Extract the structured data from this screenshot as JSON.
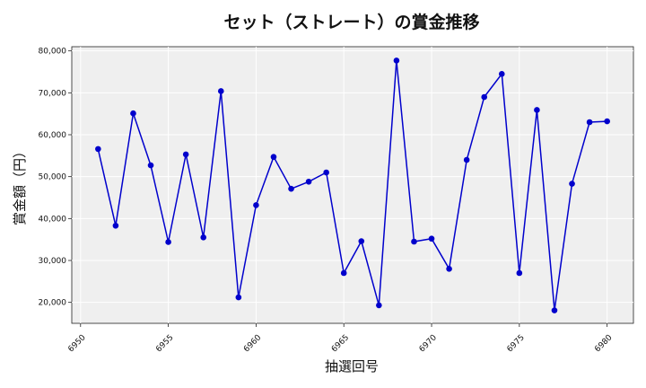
{
  "chart_data": {
    "type": "line",
    "title": "セット（ストレート）の賞金推移",
    "xlabel": "抽選回号",
    "ylabel": "賞金額（円）",
    "xlim": [
      6949.5,
      6981.5
    ],
    "ylim": [
      15000,
      81000
    ],
    "x_ticks": [
      6950,
      6955,
      6960,
      6965,
      6970,
      6975,
      6980
    ],
    "y_ticks": [
      20000,
      30000,
      40000,
      50000,
      60000,
      70000,
      80000
    ],
    "y_tick_labels": [
      "20,000",
      "30,000",
      "40,000",
      "50,000",
      "60,000",
      "70,000",
      "80,000"
    ],
    "grid": true,
    "color": "#0000cc",
    "x": [
      6951,
      6952,
      6953,
      6954,
      6955,
      6956,
      6957,
      6958,
      6959,
      6960,
      6961,
      6962,
      6963,
      6964,
      6965,
      6966,
      6967,
      6968,
      6969,
      6970,
      6971,
      6972,
      6973,
      6974,
      6975,
      6976,
      6977,
      6978,
      6979,
      6980
    ],
    "values": [
      56600,
      38300,
      65100,
      52700,
      34400,
      55300,
      35500,
      70400,
      21200,
      43200,
      54700,
      47100,
      48800,
      51000,
      27000,
      34600,
      19300,
      77700,
      34500,
      35200,
      28000,
      54000,
      69000,
      74500,
      27000,
      65900,
      18100,
      48300,
      63000,
      63200
    ]
  }
}
